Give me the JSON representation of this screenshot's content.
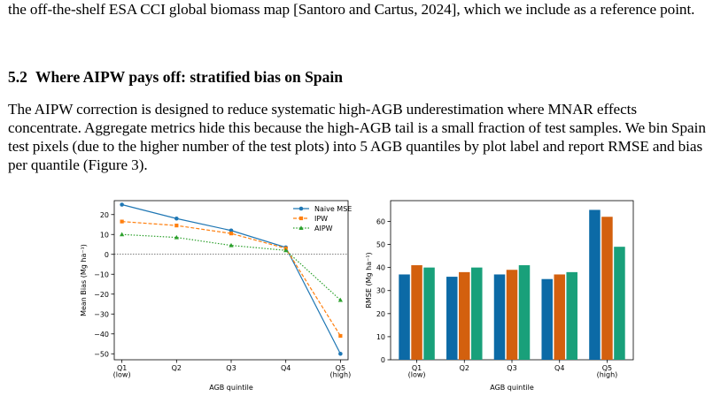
{
  "paper": {
    "para_top": "the off-the-shelf ESA CCI global biomass map [Santoro and Cartus, 2024], which we include as a reference point.",
    "section_number": "5.2",
    "section_title": "Where AIPW pays off: stratified bias on Spain",
    "para_main": "The AIPW correction is designed to reduce systematic high-AGB underestimation where MNAR effects concentrate. Aggregate metrics hide this because the high-AGB tail is a small fraction of test samples. We bin Spain test pixels (due to the higher number of the test plots) into 5 AGB quantiles by plot label and report RMSE and bias per quantile (Figure 3)."
  },
  "colors": {
    "naive": "#1f77b4",
    "ipw": "#ff7f0e",
    "aipw": "#2ca02c",
    "naive_bar": "#0c6aa6",
    "ipw_bar": "#d3600e",
    "aipw_bar": "#19a07a"
  },
  "chart_data": [
    {
      "type": "line",
      "xlabel": "AGB quintile",
      "ylabel": "Mean Bias (Mg ha⁻¹)",
      "categories": [
        "Q1\n(low)",
        "Q2",
        "Q3",
        "Q4",
        "Q5\n(high)"
      ],
      "ylim": [
        -53,
        27
      ],
      "yticks": [
        20,
        10,
        0,
        -10,
        -20,
        -30,
        -40,
        -50
      ],
      "ytick_labels": [
        "20",
        "10",
        "0",
        "−10",
        "−20",
        "−30",
        "−40",
        "−50"
      ],
      "zero_line": true,
      "legend_position": "top-right",
      "series": [
        {
          "name": "Naive MSE",
          "values": [
            25,
            18,
            12,
            3.5,
            -50
          ],
          "marker": "circle",
          "style": "solid"
        },
        {
          "name": "IPW",
          "values": [
            16.5,
            14.5,
            10.5,
            3,
            -41
          ],
          "marker": "square",
          "style": "dashed"
        },
        {
          "name": "AIPW",
          "values": [
            10,
            8.5,
            4.5,
            2,
            -23
          ],
          "marker": "triangle",
          "style": "dotted"
        }
      ]
    },
    {
      "type": "bar",
      "xlabel": "AGB quintile",
      "ylabel": "RMSE (Mg ha⁻¹)",
      "categories": [
        "Q1\n(low)",
        "Q2",
        "Q3",
        "Q4",
        "Q5\n(high)"
      ],
      "ylim": [
        0,
        69
      ],
      "yticks": [
        0,
        10,
        20,
        30,
        40,
        50,
        60
      ],
      "series": [
        {
          "values": [
            37,
            36,
            37,
            35,
            65
          ]
        },
        {
          "values": [
            41,
            38,
            39,
            37,
            62
          ]
        },
        {
          "values": [
            40,
            40,
            41,
            38,
            49
          ]
        }
      ]
    }
  ]
}
